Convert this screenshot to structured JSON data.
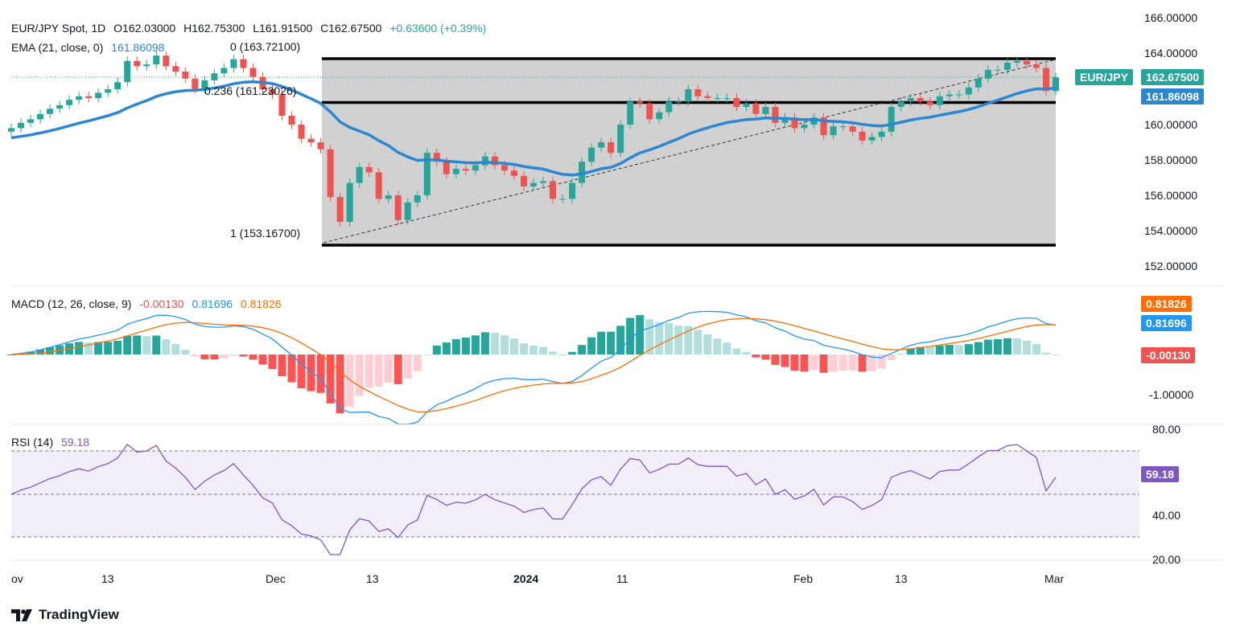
{
  "header": {
    "symbol": "EUR/JPY Spot, 1D",
    "open": "O162.03000",
    "high": "H162.75300",
    "low": "L161.91500",
    "close": "C162.67500",
    "change": "+0.63600 (+0.39%)",
    "ema_label": "EMA (21, close, 0)",
    "ema_value": "161.86098",
    "macd_label": "MACD (12, 26, close, 9)",
    "macd_hist": "-0.00130",
    "macd_line": "0.81696",
    "macd_signal": "0.81826",
    "rsi_label": "RSI (14)",
    "rsi_value": "59.18"
  },
  "price_axis": {
    "ticks": [
      "166.00000",
      "164.00000",
      "162.00000",
      "160.00000",
      "158.00000",
      "156.00000",
      "154.00000",
      "152.00000"
    ],
    "symbol_tag": "EUR/JPY",
    "last_price": "162.67500",
    "ema_tag": "161.86098"
  },
  "macd_axis": {
    "ticks": [
      "-1.00000"
    ],
    "signal_tag": "0.81826",
    "macd_tag": "0.81696",
    "hist_tag": "-0.00130"
  },
  "rsi_axis": {
    "ticks": [
      "80.00",
      "40.00",
      "20.00"
    ],
    "rsi_tag": "59.18"
  },
  "fib": {
    "level0": "0 (163.72100)",
    "level236": "0.236 (161.23026)",
    "level1": "1 (153.16700)"
  },
  "time_axis": {
    "labels": [
      "ov",
      "13",
      "Dec",
      "13",
      "2024",
      "11",
      "Feb",
      "13",
      "Mar"
    ]
  },
  "brand": "TradingView",
  "colors": {
    "up": "#26a69a",
    "down": "#ef5350",
    "ema": "#2a87d0",
    "macd": "#2196f3",
    "signal": "#ff6d00",
    "rsi": "#7e57c2",
    "fib_fill": "#d1d1d1"
  },
  "chart_data": {
    "type": "candlestick",
    "series": [
      {
        "name": "EUR/JPY",
        "ohlc_last": [
          162.03,
          162.753,
          161.915,
          162.675
        ]
      },
      {
        "name": "EMA (21, close, 0)",
        "last": 161.86098
      },
      {
        "name": "MACD",
        "macd": 0.81696,
        "signal": 0.81826,
        "hist": -0.0013
      },
      {
        "name": "RSI (14)",
        "last": 59.18
      }
    ],
    "fibonacci": [
      {
        "level": "0",
        "price": 163.721
      },
      {
        "level": "0.236",
        "price": 161.23026
      },
      {
        "level": "1",
        "price": 153.167
      }
    ],
    "ylim": [
      151.2,
      166.4
    ],
    "rsi_bands": [
      30,
      50,
      70
    ]
  }
}
